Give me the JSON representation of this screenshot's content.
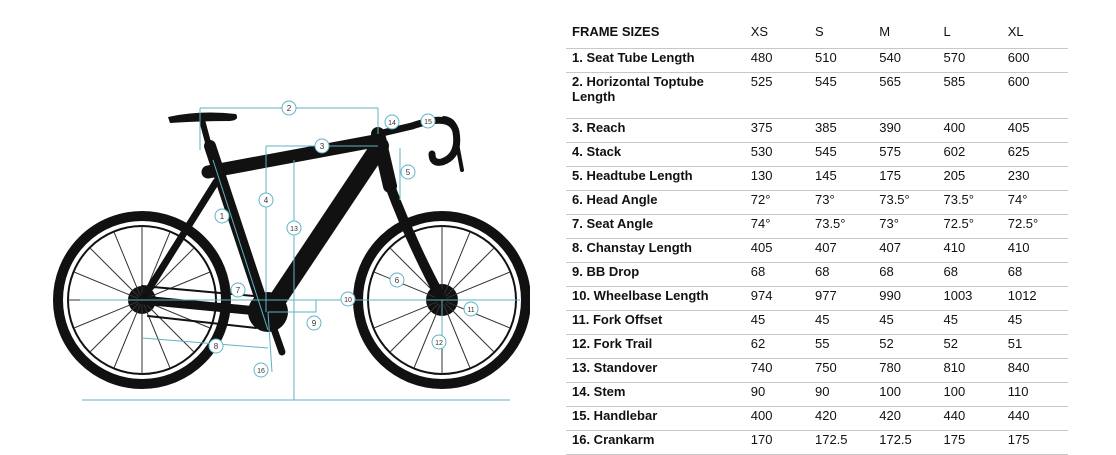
{
  "table": {
    "header": {
      "label": "FRAME SIZES",
      "sizes": [
        "XS",
        "S",
        "M",
        "L",
        "XL"
      ]
    },
    "rows": [
      {
        "label": "1. Seat Tube Length",
        "values": [
          "480",
          "510",
          "540",
          "570",
          "600"
        ]
      },
      {
        "label": "2. Horizontal Toptube Length",
        "values": [
          "525",
          "545",
          "565",
          "585",
          "600"
        ]
      },
      {
        "label": "3. Reach",
        "values": [
          "375",
          "385",
          "390",
          "400",
          "405"
        ]
      },
      {
        "label": "4. Stack",
        "values": [
          "530",
          "545",
          "575",
          "602",
          "625"
        ]
      },
      {
        "label": "5. Headtube Length",
        "values": [
          "130",
          "145",
          "175",
          "205",
          "230"
        ]
      },
      {
        "label": "6. Head Angle",
        "values": [
          "72°",
          "73°",
          "73.5°",
          "73.5°",
          "74°"
        ]
      },
      {
        "label": "7. Seat Angle",
        "values": [
          "74°",
          "73.5°",
          "73°",
          "72.5°",
          "72.5°"
        ]
      },
      {
        "label": "8. Chanstay Length",
        "values": [
          "405",
          "407",
          "407",
          "410",
          "410"
        ]
      },
      {
        "label": "9. BB Drop",
        "values": [
          "68",
          "68",
          "68",
          "68",
          "68"
        ]
      },
      {
        "label": "10. Wheelbase Length",
        "values": [
          "974",
          "977",
          "990",
          "1003",
          "1012"
        ]
      },
      {
        "label": "11. Fork Offset",
        "values": [
          "45",
          "45",
          "45",
          "45",
          "45"
        ]
      },
      {
        "label": "12. Fork Trail",
        "values": [
          "62",
          "55",
          "52",
          "52",
          "51"
        ]
      },
      {
        "label": "13. Standover",
        "values": [
          "740",
          "750",
          "780",
          "810",
          "840"
        ]
      },
      {
        "label": "14. Stem",
        "values": [
          "90",
          "90",
          "100",
          "100",
          "110"
        ]
      },
      {
        "label": "15. Handlebar",
        "values": [
          "400",
          "420",
          "420",
          "440",
          "440"
        ]
      },
      {
        "label": "16. Crankarm",
        "values": [
          "170",
          "172.5",
          "172.5",
          "175",
          "175"
        ]
      }
    ]
  },
  "diagram": {
    "markers": [
      "1",
      "2",
      "3",
      "4",
      "5",
      "6",
      "7",
      "8",
      "9",
      "10",
      "11",
      "12",
      "13",
      "14",
      "15",
      "16"
    ],
    "colors": {
      "bike": "#111111",
      "measure_line": "#5fb3c4",
      "marker_fill": "#ffffff"
    }
  }
}
